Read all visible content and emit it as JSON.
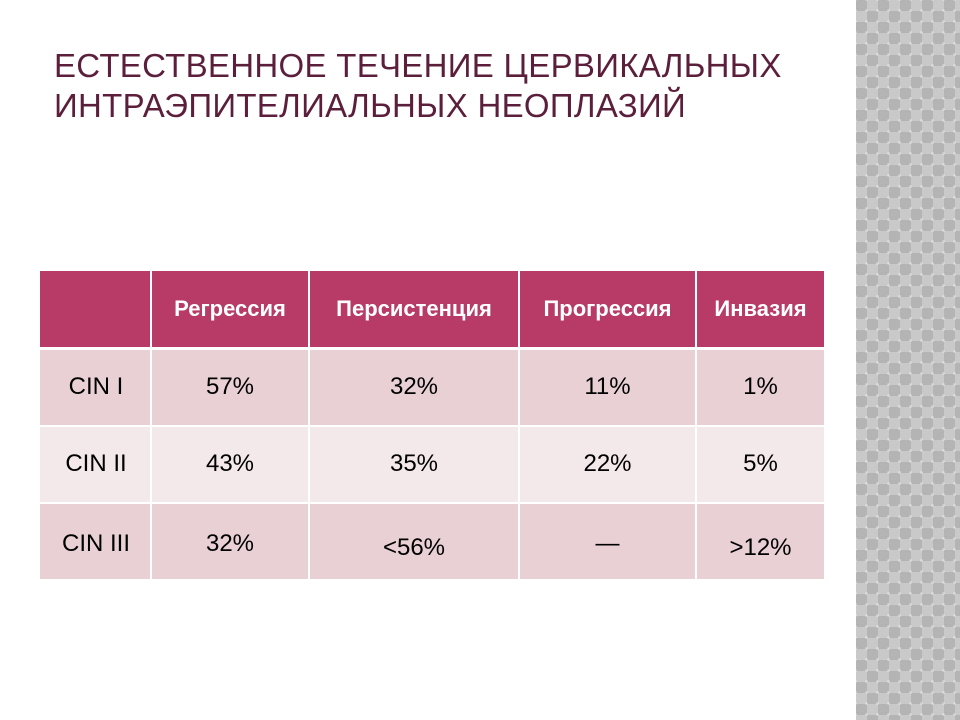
{
  "slide": {
    "title_line_1": "ЕСТЕСТВЕННОЕ ТЕЧЕНИЕ ЦЕРВИКАЛЬНЫХ",
    "title_line_2": "ИНТРАЭПИТЕЛИАЛЬНЫХ НЕОПЛАЗИЙ"
  },
  "table": {
    "corner": "",
    "headers": [
      "Регрессия",
      "Персистенция",
      "Прогрессия",
      "Инвазия"
    ],
    "rows": [
      {
        "label": "CIN I",
        "values": [
          "57%",
          "32%",
          "11%",
          "1%"
        ]
      },
      {
        "label": "CIN II",
        "values": [
          "43%",
          "35%",
          "22%",
          "5%"
        ]
      },
      {
        "label": "CIN III",
        "values": [
          "32%",
          "<56%",
          "—",
          ">12%"
        ]
      }
    ]
  },
  "colors": {
    "title": "#5c1f3b",
    "header_fill": "#b73b66",
    "row_band_dark": "#e8d0d5",
    "row_band_light": "#f3e8ea",
    "side_pattern": "#b4b4b4"
  }
}
